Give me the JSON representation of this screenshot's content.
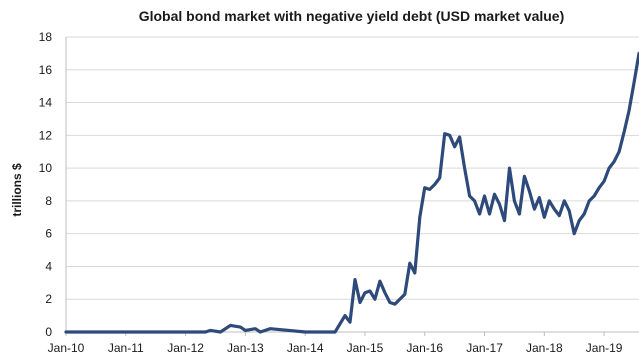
{
  "chart_data": {
    "type": "line",
    "title": "Global bond market with negative yield debt (USD market value)",
    "ylabel": "trillions $",
    "xlabel": "",
    "ylim": [
      0,
      18
    ],
    "xlim": [
      "2010-01",
      "2019-08"
    ],
    "grid": "horizontal",
    "y_ticks": [
      "0",
      "2",
      "4",
      "6",
      "8",
      "10",
      "12",
      "14",
      "16",
      "18"
    ],
    "x_ticks": [
      "Jan-10",
      "Jan-11",
      "Jan-12",
      "Jan-13",
      "Jan-14",
      "Jan-15",
      "Jan-16",
      "Jan-17",
      "Jan-18",
      "Jan-19"
    ],
    "line_color": "#2e4a7a",
    "series": [
      {
        "x": [
          "2010-01-01",
          "2011-01-01",
          "2012-01-01",
          "2012-05-01",
          "2012-06-01",
          "2012-08-01",
          "2012-10-01",
          "2012-12-01",
          "2013-01-01",
          "2013-03-01",
          "2013-04-01",
          "2013-06-01",
          "2014-01-01",
          "2014-07-01",
          "2014-09-01",
          "2014-10-01",
          "2014-11-01",
          "2014-12-01",
          "2015-01-01",
          "2015-02-01",
          "2015-03-01",
          "2015-04-01",
          "2015-05-01",
          "2015-06-01",
          "2015-07-01",
          "2015-08-01",
          "2015-09-01",
          "2015-10-01",
          "2015-11-01",
          "2015-12-01",
          "2016-01-01",
          "2016-02-01",
          "2016-03-01",
          "2016-04-01",
          "2016-05-01",
          "2016-06-01",
          "2016-07-01",
          "2016-08-01",
          "2016-09-01",
          "2016-10-01",
          "2016-11-01",
          "2016-12-01",
          "2017-01-01",
          "2017-02-01",
          "2017-03-01",
          "2017-04-01",
          "2017-05-01",
          "2017-06-01",
          "2017-07-01",
          "2017-08-01",
          "2017-09-01",
          "2017-10-01",
          "2017-11-01",
          "2017-12-01",
          "2018-01-01",
          "2018-02-01",
          "2018-03-01",
          "2018-04-01",
          "2018-05-01",
          "2018-06-01",
          "2018-07-01",
          "2018-08-01",
          "2018-09-01",
          "2018-10-01",
          "2018-11-01",
          "2018-12-01",
          "2019-01-01",
          "2019-02-01",
          "2019-03-01",
          "2019-04-01",
          "2019-05-01",
          "2019-06-01",
          "2019-07-01",
          "2019-08-01"
        ],
        "y": [
          0,
          0,
          0,
          0,
          0.1,
          0,
          0.4,
          0.3,
          0.1,
          0.2,
          0,
          0.2,
          0,
          0,
          1.0,
          0.6,
          3.2,
          1.8,
          2.4,
          2.5,
          2.0,
          3.1,
          2.4,
          1.8,
          1.7,
          2.0,
          2.3,
          4.2,
          3.6,
          7.0,
          8.8,
          8.7,
          9.0,
          9.4,
          12.1,
          12.0,
          11.3,
          11.9,
          10.0,
          8.3,
          8.0,
          7.2,
          8.3,
          7.2,
          8.4,
          7.8,
          6.8,
          10.0,
          8.0,
          7.2,
          9.5,
          8.6,
          7.5,
          8.2,
          7.0,
          8.0,
          7.5,
          7.1,
          8.0,
          7.4,
          6.0,
          6.8,
          7.2,
          8.0,
          8.3,
          8.8,
          9.2,
          10.0,
          10.4,
          11.0,
          12.2,
          13.5,
          15.2,
          17.0
        ]
      }
    ]
  }
}
